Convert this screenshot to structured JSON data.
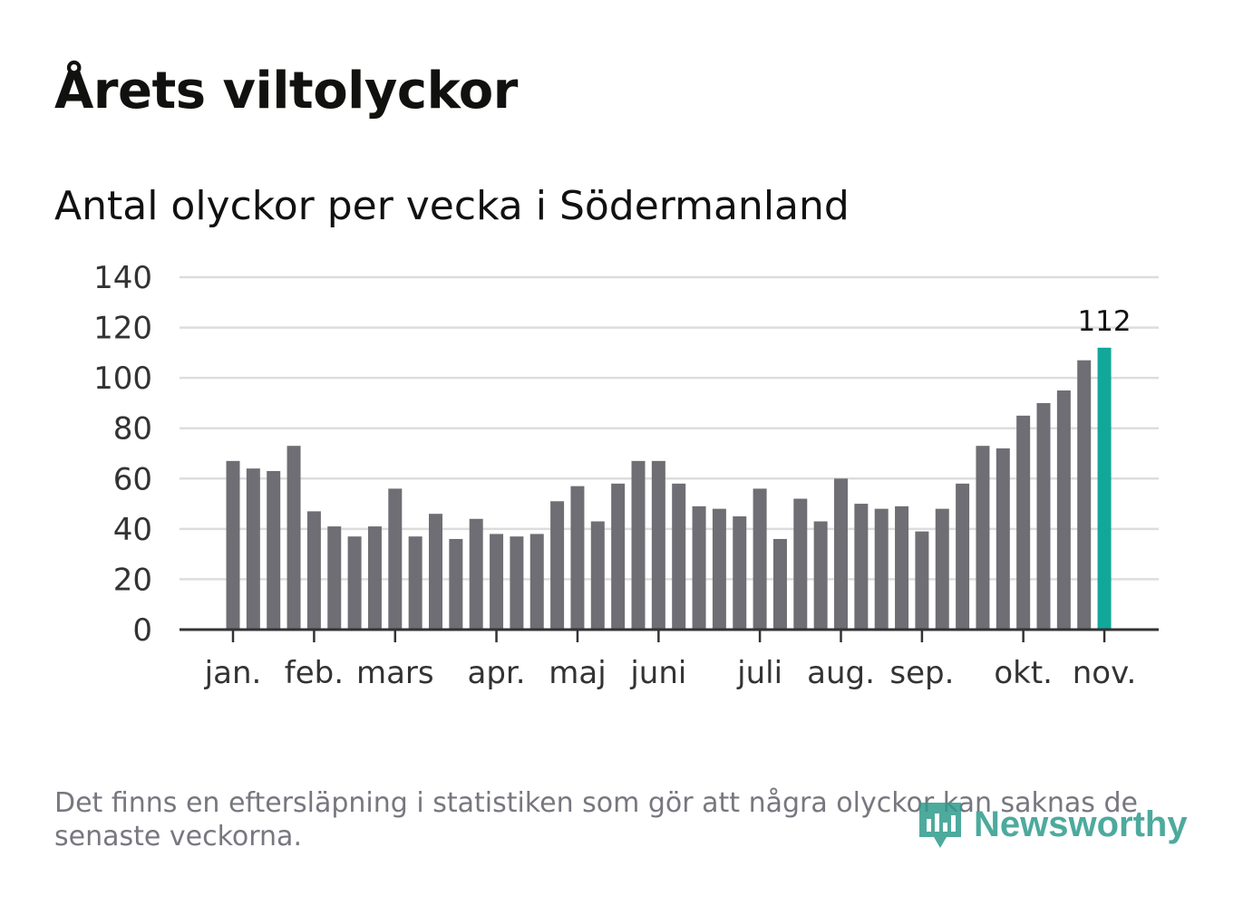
{
  "title": "Årets viltolyckor",
  "subtitle": "Antal olyckor per vecka i Södermanland",
  "footnote": "Det finns en eftersläpning i statistiken som gör att några olyckor kan saknas de senaste veckorna.",
  "logo_text": "Newsworthy",
  "colors": {
    "bar": "#6f6e74",
    "highlight": "#12a79a",
    "grid": "#dddddd",
    "axis": "#333333"
  },
  "chart_data": {
    "type": "bar",
    "title": "Årets viltolyckor",
    "subtitle": "Antal olyckor per vecka i Södermanland",
    "xlabel": "",
    "ylabel": "",
    "ylim": [
      0,
      140
    ],
    "yticks": [
      0,
      20,
      40,
      60,
      80,
      100,
      120,
      140
    ],
    "values": [
      67,
      64,
      63,
      73,
      47,
      41,
      37,
      41,
      56,
      37,
      46,
      36,
      44,
      38,
      37,
      38,
      51,
      57,
      43,
      58,
      67,
      67,
      58,
      49,
      48,
      45,
      56,
      36,
      52,
      43,
      60,
      50,
      48,
      49,
      39,
      48,
      58,
      73,
      72,
      85,
      90,
      95,
      107,
      112
    ],
    "highlight_index": 43,
    "highlight_label": "112",
    "month_labels": [
      {
        "label": "jan.",
        "bar_index": 0
      },
      {
        "label": "feb.",
        "bar_index": 4
      },
      {
        "label": "mars",
        "bar_index": 8
      },
      {
        "label": "apr.",
        "bar_index": 13
      },
      {
        "label": "maj",
        "bar_index": 17
      },
      {
        "label": "juni",
        "bar_index": 21
      },
      {
        "label": "juli",
        "bar_index": 26
      },
      {
        "label": "aug.",
        "bar_index": 30
      },
      {
        "label": "sep.",
        "bar_index": 34
      },
      {
        "label": "okt.",
        "bar_index": 39
      },
      {
        "label": "nov.",
        "bar_index": 43
      }
    ],
    "grid": true
  }
}
